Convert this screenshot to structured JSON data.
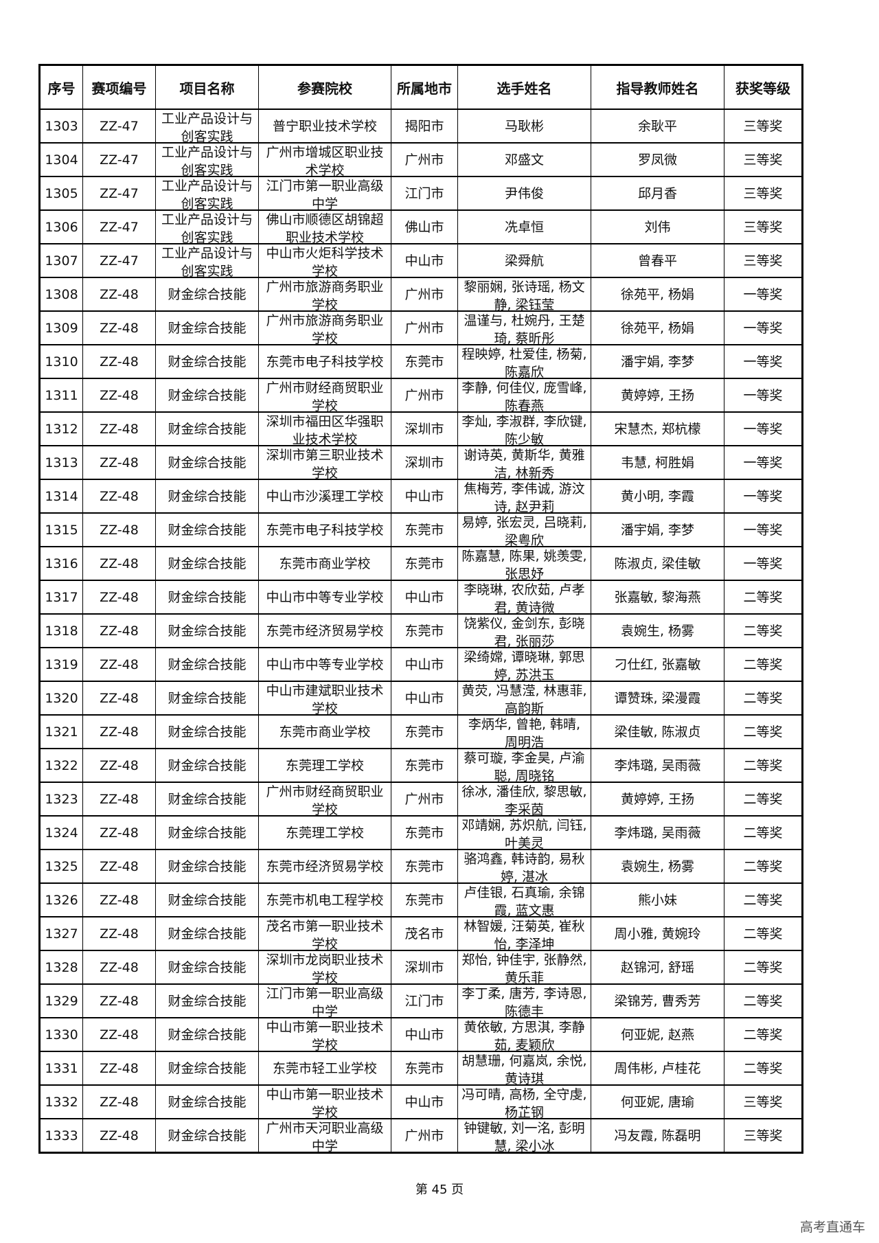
{
  "table": {
    "headers": [
      "序号",
      "赛项编号",
      "项目名称",
      "参赛院校",
      "所属地市",
      "选手姓名",
      "指导教师姓名",
      "获奖等级"
    ],
    "rows": [
      [
        "1303",
        "ZZ-47",
        "工业产品设计与创客实践",
        "普宁职业技术学校",
        "揭阳市",
        "马耿彬",
        "余耿平",
        "三等奖"
      ],
      [
        "1304",
        "ZZ-47",
        "工业产品设计与创客实践",
        "广州市增城区职业技术学校",
        "广州市",
        "邓盛文",
        "罗凤微",
        "三等奖"
      ],
      [
        "1305",
        "ZZ-47",
        "工业产品设计与创客实践",
        "江门市第一职业高级中学",
        "江门市",
        "尹伟俊",
        "邱月香",
        "三等奖"
      ],
      [
        "1306",
        "ZZ-47",
        "工业产品设计与创客实践",
        "佛山市顺德区胡锦超职业技术学校",
        "佛山市",
        "冼卓恒",
        "刘伟",
        "三等奖"
      ],
      [
        "1307",
        "ZZ-47",
        "工业产品设计与创客实践",
        "中山市火炬科学技术学校",
        "中山市",
        "梁舜航",
        "曾春平",
        "三等奖"
      ],
      [
        "1308",
        "ZZ-48",
        "财金综合技能",
        "广州市旅游商务职业学校",
        "广州市",
        "黎丽娴, 张诗瑶, 杨文静, 梁钰莹",
        "徐苑平, 杨娟",
        "一等奖"
      ],
      [
        "1309",
        "ZZ-48",
        "财金综合技能",
        "广州市旅游商务职业学校",
        "广州市",
        "温谨与, 杜婉丹, 王楚琦, 蔡昕彤",
        "徐苑平, 杨娟",
        "一等奖"
      ],
      [
        "1310",
        "ZZ-48",
        "财金综合技能",
        "东莞市电子科技学校",
        "东莞市",
        "程映婷, 杜爱佳, 杨菊, 陈嘉欣",
        "潘宇娟, 李梦",
        "一等奖"
      ],
      [
        "1311",
        "ZZ-48",
        "财金综合技能",
        "广州市财经商贸职业学校",
        "广州市",
        "李静, 何佳仪, 庞雪峰, 陈春燕",
        "黄婷婷, 王扬",
        "一等奖"
      ],
      [
        "1312",
        "ZZ-48",
        "财金综合技能",
        "深圳市福田区华强职业技术学校",
        "深圳市",
        "李灿, 李淑群, 李欣键, 陈少敏",
        "宋慧杰, 郑杭檬",
        "一等奖"
      ],
      [
        "1313",
        "ZZ-48",
        "财金综合技能",
        "深圳市第三职业技术学校",
        "深圳市",
        "谢诗英, 黄斯华, 黄雅洁, 林新秀",
        "韦慧, 柯胜娟",
        "一等奖"
      ],
      [
        "1314",
        "ZZ-48",
        "财金综合技能",
        "中山市沙溪理工学校",
        "中山市",
        "焦梅芳, 李伟诚, 游汶诗, 赵尹莉",
        "黄小明, 李霞",
        "一等奖"
      ],
      [
        "1315",
        "ZZ-48",
        "财金综合技能",
        "东莞市电子科技学校",
        "东莞市",
        "易婷, 张宏灵, 吕晓莉, 梁粤欣",
        "潘宇娟, 李梦",
        "一等奖"
      ],
      [
        "1316",
        "ZZ-48",
        "财金综合技能",
        "东莞市商业学校",
        "东莞市",
        "陈嘉慧, 陈果, 姚羡雯, 张思妤",
        "陈淑贞, 梁佳敏",
        "一等奖"
      ],
      [
        "1317",
        "ZZ-48",
        "财金综合技能",
        "中山市中等专业学校",
        "中山市",
        "李晓琳, 农欣茹, 卢孝君, 黄诗微",
        "张嘉敏, 黎海燕",
        "二等奖"
      ],
      [
        "1318",
        "ZZ-48",
        "财金综合技能",
        "东莞市经济贸易学校",
        "东莞市",
        "饶紫仪, 金剑东, 彭晓君, 张丽莎",
        "袁婉生, 杨雾",
        "二等奖"
      ],
      [
        "1319",
        "ZZ-48",
        "财金综合技能",
        "中山市中等专业学校",
        "中山市",
        "梁绮嫦, 谭晓琳, 郭思婷, 苏洪玉",
        "刁仕红, 张嘉敏",
        "二等奖"
      ],
      [
        "1320",
        "ZZ-48",
        "财金综合技能",
        "中山市建斌职业技术学校",
        "中山市",
        "黄荧, 冯慧滢, 林惠菲, 高韵斯",
        "谭赞珠, 梁漫霞",
        "二等奖"
      ],
      [
        "1321",
        "ZZ-48",
        "财金综合技能",
        "东莞市商业学校",
        "东莞市",
        "李炳华, 曾艳, 韩晴, 周明浩",
        "梁佳敏, 陈淑贞",
        "二等奖"
      ],
      [
        "1322",
        "ZZ-48",
        "财金综合技能",
        "东莞理工学校",
        "东莞市",
        "蔡可璇, 李金昊, 卢渝聪, 周晓铭",
        "李炜璐, 吴雨薇",
        "二等奖"
      ],
      [
        "1323",
        "ZZ-48",
        "财金综合技能",
        "广州市财经商贸职业学校",
        "广州市",
        "徐冰, 潘佳欣, 黎思敏, 李采茵",
        "黄婷婷, 王扬",
        "二等奖"
      ],
      [
        "1324",
        "ZZ-48",
        "财金综合技能",
        "东莞理工学校",
        "东莞市",
        "邓靖娴, 苏炽航, 闫钰, 叶美灵",
        "李炜璐, 吴雨薇",
        "二等奖"
      ],
      [
        "1325",
        "ZZ-48",
        "财金综合技能",
        "东莞市经济贸易学校",
        "东莞市",
        "骆鸿鑫, 韩诗韵, 易秋婷, 湛冰",
        "袁婉生, 杨雾",
        "二等奖"
      ],
      [
        "1326",
        "ZZ-48",
        "财金综合技能",
        "东莞市机电工程学校",
        "东莞市",
        "卢佳银, 石真瑜, 余锦霞, 蓝文惠",
        "熊小妹",
        "二等奖"
      ],
      [
        "1327",
        "ZZ-48",
        "财金综合技能",
        "茂名市第一职业技术学校",
        "茂名市",
        "林智媛, 汪菊英, 崔秋怡, 李泽坤",
        "周小雅, 黄婉玲",
        "二等奖"
      ],
      [
        "1328",
        "ZZ-48",
        "财金综合技能",
        "深圳市龙岗职业技术学校",
        "深圳市",
        "郑怡, 钟佳宇, 张静然, 黄乐菲",
        "赵锦河, 舒瑶",
        "二等奖"
      ],
      [
        "1329",
        "ZZ-48",
        "财金综合技能",
        "江门市第一职业高级中学",
        "江门市",
        "李丁柔, 唐芳, 李诗恩, 陈德丰",
        "梁锦芳, 曹秀芳",
        "二等奖"
      ],
      [
        "1330",
        "ZZ-48",
        "财金综合技能",
        "中山市第一职业技术学校",
        "中山市",
        "黄依敏, 方思淇, 李静茹, 麦颖欣",
        "何亚妮, 赵燕",
        "二等奖"
      ],
      [
        "1331",
        "ZZ-48",
        "财金综合技能",
        "东莞市轻工业学校",
        "东莞市",
        "胡慧珊, 何嘉岚, 余悦, 黄诗琪",
        "周伟彬, 卢桂花",
        "二等奖"
      ],
      [
        "1332",
        "ZZ-48",
        "财金综合技能",
        "中山市第一职业技术学校",
        "中山市",
        "冯可晴, 高杨, 全守虔, 杨芷钢",
        "何亚妮, 唐瑜",
        "三等奖"
      ],
      [
        "1333",
        "ZZ-48",
        "财金综合技能",
        "广州市天河职业高级中学",
        "广州市",
        "钟键敏, 刘一洺, 彭明慧, 梁小冰",
        "冯友霞, 陈磊明",
        "三等奖"
      ]
    ]
  },
  "footer": {
    "page_label": "第 45 页"
  },
  "watermark": "高考直通车"
}
